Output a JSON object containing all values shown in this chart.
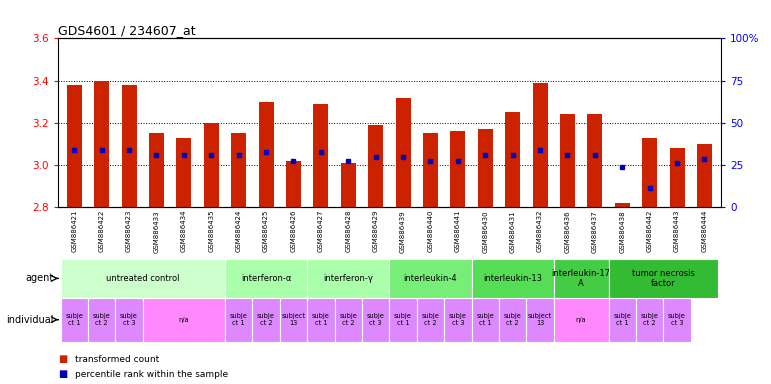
{
  "title": "GDS4601 / 234607_at",
  "samples": [
    "GSM886421",
    "GSM886422",
    "GSM886423",
    "GSM886433",
    "GSM886434",
    "GSM886435",
    "GSM886424",
    "GSM886425",
    "GSM886426",
    "GSM886427",
    "GSM886428",
    "GSM886429",
    "GSM886439",
    "GSM886440",
    "GSM886441",
    "GSM886430",
    "GSM886431",
    "GSM886432",
    "GSM886436",
    "GSM886437",
    "GSM886438",
    "GSM886442",
    "GSM886443",
    "GSM886444"
  ],
  "bar_tops": [
    3.38,
    3.4,
    3.38,
    3.15,
    3.13,
    3.2,
    3.15,
    3.3,
    3.02,
    3.29,
    3.01,
    3.19,
    3.32,
    3.15,
    3.16,
    3.17,
    3.25,
    3.39,
    3.24,
    3.24,
    2.82,
    3.13,
    3.08,
    3.1
  ],
  "pct_dots": [
    3.07,
    3.07,
    3.07,
    3.05,
    3.05,
    3.05,
    3.05,
    3.06,
    3.02,
    3.06,
    3.02,
    3.04,
    3.04,
    3.02,
    3.02,
    3.05,
    3.05,
    3.07,
    3.05,
    3.05,
    2.99,
    2.89,
    3.01,
    3.03
  ],
  "ymin": 2.8,
  "ymax": 3.6,
  "yticks_left": [
    2.8,
    3.0,
    3.2,
    3.4,
    3.6
  ],
  "yticks_right_vals": [
    0,
    25,
    50,
    75,
    100
  ],
  "yticks_right_labels": [
    "0",
    "25",
    "50",
    "75",
    "100%"
  ],
  "bar_color": "#cc2200",
  "dot_color": "#0000bb",
  "bar_width": 0.55,
  "agents": [
    {
      "label": "untreated control",
      "start": 0,
      "end": 5,
      "color": "#ccffcc"
    },
    {
      "label": "interferon-α",
      "start": 6,
      "end": 8,
      "color": "#aaffaa"
    },
    {
      "label": "interferon-γ",
      "start": 9,
      "end": 11,
      "color": "#aaffaa"
    },
    {
      "label": "interleukin-4",
      "start": 12,
      "end": 14,
      "color": "#77ee77"
    },
    {
      "label": "interleukin-13",
      "start": 15,
      "end": 17,
      "color": "#55dd55"
    },
    {
      "label": "interleukin-17\nA",
      "start": 18,
      "end": 19,
      "color": "#44cc44"
    },
    {
      "label": "tumor necrosis\nfactor",
      "start": 20,
      "end": 23,
      "color": "#33bb33"
    }
  ],
  "indivs": [
    {
      "label": "subje\nct 1",
      "start": 0,
      "end": 0,
      "color": "#dd88ff"
    },
    {
      "label": "subje\nct 2",
      "start": 1,
      "end": 1,
      "color": "#dd88ff"
    },
    {
      "label": "subje\nct 3",
      "start": 2,
      "end": 2,
      "color": "#dd88ff"
    },
    {
      "label": "n/a",
      "start": 3,
      "end": 5,
      "color": "#ff88ff"
    },
    {
      "label": "subje\nct 1",
      "start": 6,
      "end": 6,
      "color": "#dd88ff"
    },
    {
      "label": "subje\nct 2",
      "start": 7,
      "end": 7,
      "color": "#dd88ff"
    },
    {
      "label": "subject\n13",
      "start": 8,
      "end": 8,
      "color": "#dd88ff"
    },
    {
      "label": "subje\nct 1",
      "start": 9,
      "end": 9,
      "color": "#dd88ff"
    },
    {
      "label": "subje\nct 2",
      "start": 10,
      "end": 10,
      "color": "#dd88ff"
    },
    {
      "label": "subje\nct 3",
      "start": 11,
      "end": 11,
      "color": "#dd88ff"
    },
    {
      "label": "subje\nct 1",
      "start": 12,
      "end": 12,
      "color": "#dd88ff"
    },
    {
      "label": "subje\nct 2",
      "start": 13,
      "end": 13,
      "color": "#dd88ff"
    },
    {
      "label": "subje\nct 3",
      "start": 14,
      "end": 14,
      "color": "#dd88ff"
    },
    {
      "label": "subje\nct 1",
      "start": 15,
      "end": 15,
      "color": "#dd88ff"
    },
    {
      "label": "subje\nct 2",
      "start": 16,
      "end": 16,
      "color": "#dd88ff"
    },
    {
      "label": "subject\n13",
      "start": 17,
      "end": 17,
      "color": "#dd88ff"
    },
    {
      "label": "n/a",
      "start": 18,
      "end": 19,
      "color": "#ff88ff"
    },
    {
      "label": "subje\nct 1",
      "start": 20,
      "end": 20,
      "color": "#dd88ff"
    },
    {
      "label": "subje\nct 2",
      "start": 21,
      "end": 21,
      "color": "#dd88ff"
    },
    {
      "label": "subje\nct 3",
      "start": 22,
      "end": 22,
      "color": "#dd88ff"
    }
  ],
  "legend_bar_label": "transformed count",
  "legend_dot_label": "percentile rank within the sample",
  "agent_label": "agent",
  "indiv_label": "individual",
  "fig_width": 7.71,
  "fig_height": 3.84,
  "dpi": 100
}
